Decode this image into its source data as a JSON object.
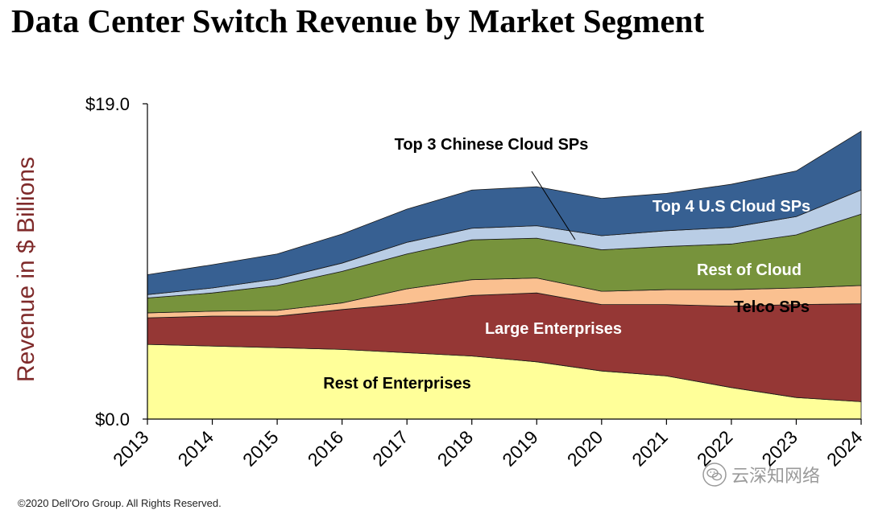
{
  "title": "Data Center Switch Revenue by Market Segment",
  "footer": "©2020 Dell'Oro Group. All Rights Reserved.",
  "watermark": {
    "text": "云深知网络",
    "icon": "wechat-icon"
  },
  "chart_data": {
    "type": "area",
    "stacked": true,
    "x": [
      "2013",
      "2014",
      "2015",
      "2016",
      "2017",
      "2018",
      "2019",
      "2020",
      "2021",
      "2022",
      "2023",
      "2024"
    ],
    "ylabel": "Revenue in $ Billions",
    "ylim": [
      0,
      19
    ],
    "ytick_labels": [
      "$0.0",
      "$19.0"
    ],
    "series": [
      {
        "name": "Rest of Enterprises",
        "color": "#ffff99",
        "values": [
          4.5,
          4.4,
          4.3,
          4.2,
          4.0,
          3.8,
          3.45,
          2.9,
          2.6,
          1.9,
          1.3,
          1.05
        ]
      },
      {
        "name": "Large Enterprises",
        "color": "#953735",
        "values": [
          1.6,
          1.8,
          1.9,
          2.4,
          2.95,
          3.65,
          4.15,
          4.0,
          4.3,
          4.9,
          5.6,
          5.9
        ]
      },
      {
        "name": "Telco SPs",
        "color": "#fac090",
        "values": [
          0.3,
          0.3,
          0.35,
          0.4,
          0.9,
          0.95,
          0.9,
          0.8,
          0.9,
          1.0,
          1.0,
          1.1
        ]
      },
      {
        "name": "Rest of Cloud",
        "color": "#77933c",
        "values": [
          0.9,
          1.1,
          1.5,
          1.9,
          2.1,
          2.4,
          2.4,
          2.5,
          2.6,
          2.75,
          3.2,
          4.3
        ]
      },
      {
        "name": "Top 4 U.S Cloud SPs",
        "color": "#b9cde5",
        "values": [
          0.2,
          0.3,
          0.4,
          0.5,
          0.7,
          0.7,
          0.75,
          0.85,
          0.95,
          1.0,
          1.1,
          1.45
        ]
      },
      {
        "name": "Top 3 Chinese Cloud SPs",
        "color": "#376092",
        "values": [
          1.2,
          1.4,
          1.5,
          1.75,
          2.0,
          2.3,
          2.35,
          2.25,
          2.25,
          2.6,
          2.75,
          3.55
        ]
      }
    ],
    "segment_labels": [
      {
        "series": "Top 3 Chinese Cloud SPs",
        "text": "Top 3 Chinese Cloud SPs",
        "color": "#000000"
      },
      {
        "series": "Top 4 U.S Cloud SPs",
        "text": "Top 4 U.S Cloud SPs",
        "color": "#ffffff"
      },
      {
        "series": "Rest of Cloud",
        "text": "Rest of Cloud",
        "color": "#ffffff"
      },
      {
        "series": "Telco SPs",
        "text": "Telco SPs",
        "color": "#000000"
      },
      {
        "series": "Large Enterprises",
        "text": "Large Enterprises",
        "color": "#ffffff"
      },
      {
        "series": "Rest of Enterprises",
        "text": "Rest of Enterprises",
        "color": "#000000"
      }
    ],
    "ylabel_color": "#7f2a2a"
  }
}
